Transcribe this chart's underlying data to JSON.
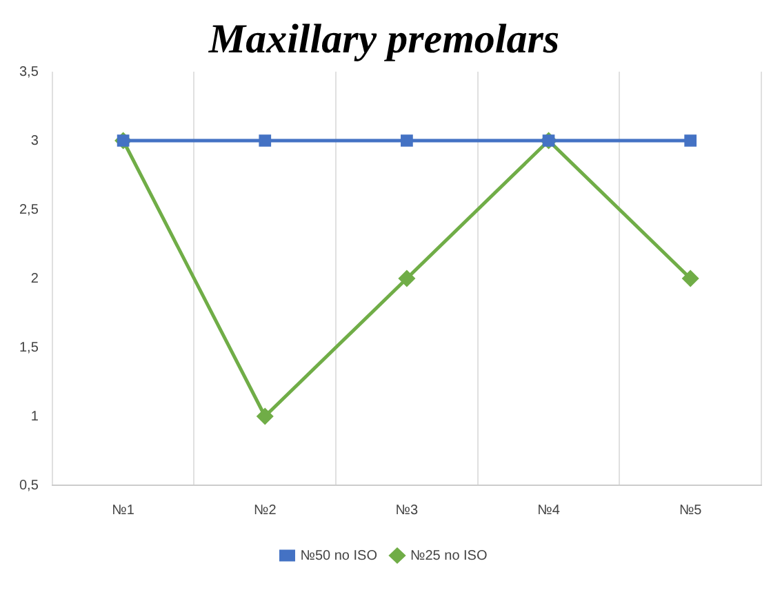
{
  "chart_data": {
    "type": "line",
    "title": "Maxillary premolars",
    "categories": [
      "№1",
      "№2",
      "№3",
      "№4",
      "№5"
    ],
    "series": [
      {
        "name": "№25 no ISO",
        "color": "#70ad47",
        "values": [
          3,
          1,
          2,
          3,
          2
        ],
        "marker": "diamond"
      },
      {
        "name": "№50 no ISO",
        "color": "#4472c4",
        "values": [
          3,
          3,
          3,
          3,
          3
        ],
        "marker": "square"
      }
    ],
    "ylim": [
      0.5,
      3.5
    ],
    "yticks": [
      {
        "value": 0.5,
        "label": "0,5"
      },
      1,
      {
        "value": 1.5,
        "label": "1,5"
      },
      2,
      {
        "value": 2.5,
        "label": "2,5"
      },
      3,
      {
        "value": 3.5,
        "label": "3,5"
      }
    ],
    "grid": "x",
    "legend": "bottom",
    "line_style": "solid"
  }
}
